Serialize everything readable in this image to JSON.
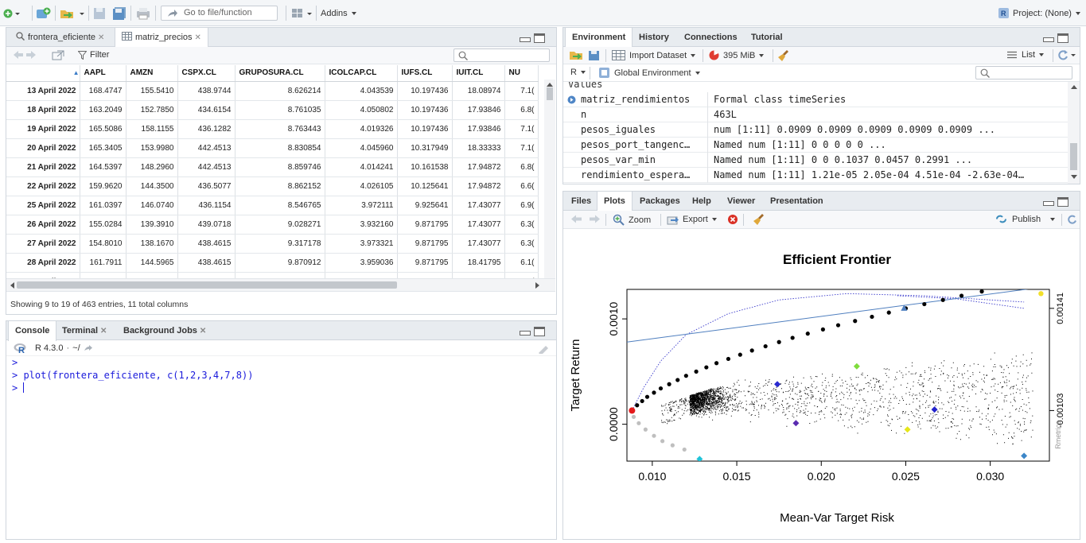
{
  "top_toolbar": {
    "goto_placeholder": "Go to file/function",
    "addins_label": "Addins",
    "project_label": "Project: (None)"
  },
  "source_pane": {
    "tabs": [
      {
        "label": "frontera_eficiente",
        "active": false
      },
      {
        "label": "matriz_precios",
        "active": true
      }
    ],
    "filter_label": "Filter",
    "columns": [
      "",
      "AAPL",
      "AMZN",
      "CSPX.CL",
      "GRUPOSURA.CL",
      "ICOLCAP.CL",
      "IUFS.CL",
      "IUIT.CL",
      "NU"
    ],
    "rows": [
      [
        "13 April 2022",
        "168.4747",
        "155.5410",
        "438.9744",
        "8.626214",
        "4.043539",
        "10.197436",
        "18.08974",
        "7.1("
      ],
      [
        "18 April 2022",
        "163.2049",
        "152.7850",
        "434.6154",
        "8.761035",
        "4.050802",
        "10.197436",
        "17.93846",
        "6.8("
      ],
      [
        "19 April 2022",
        "165.5086",
        "158.1155",
        "436.1282",
        "8.763443",
        "4.019326",
        "10.197436",
        "17.93846",
        "7.1("
      ],
      [
        "20 April 2022",
        "165.3405",
        "153.9980",
        "442.4513",
        "8.830854",
        "4.045960",
        "10.317949",
        "18.33333",
        "7.1("
      ],
      [
        "21 April 2022",
        "164.5397",
        "148.2960",
        "442.4513",
        "8.859746",
        "4.014241",
        "10.161538",
        "17.94872",
        "6.8("
      ],
      [
        "22 April 2022",
        "159.9620",
        "144.3500",
        "436.5077",
        "8.862152",
        "4.026105",
        "10.125641",
        "17.94872",
        "6.6("
      ],
      [
        "25 April 2022",
        "161.0397",
        "146.0740",
        "436.1154",
        "8.546765",
        "3.972111",
        "9.925641",
        "17.43077",
        "6.9("
      ],
      [
        "26 April 2022",
        "155.0284",
        "139.3910",
        "439.0718",
        "9.028271",
        "3.932160",
        "9.871795",
        "17.43077",
        "6.3("
      ],
      [
        "27 April 2022",
        "154.8010",
        "138.1670",
        "438.4615",
        "9.317178",
        "3.973321",
        "9.871795",
        "17.43077",
        "6.3("
      ],
      [
        "28 April 2022",
        "161.7911",
        "144.5965",
        "438.4615",
        "9.870912",
        "3.959036",
        "9.871795",
        "18.41795",
        "6.1("
      ],
      [
        "29 April 2022",
        "155.8688",
        "124.2815",
        "436.9231",
        "9.870912",
        "3.861943",
        "9.871795",
        "18.71795",
        "6.0("
      ]
    ],
    "status": "Showing 9 to 19 of 463 entries, 11 total columns"
  },
  "console_pane": {
    "tabs": [
      {
        "label": "Console",
        "active": true
      },
      {
        "label": "Terminal",
        "active": false
      },
      {
        "label": "Background Jobs",
        "active": false
      }
    ],
    "r_version": "R 4.3.0",
    "path": "~/",
    "lines": [
      ">",
      "> plot(frontera_eficiente, c(1,2,3,4,7,8))",
      ">"
    ]
  },
  "env_pane": {
    "tabs": [
      "Environment",
      "History",
      "Connections",
      "Tutorial"
    ],
    "active_tab": "Environment",
    "import_label": "Import Dataset",
    "memory_label": "395 MiB",
    "list_label": "List",
    "lang_label": "R",
    "scope_label": "Global Environment",
    "section_label": "Values",
    "values": [
      {
        "name": "matriz_rendimientos",
        "value": "Formal class  timeSeries",
        "expandable": true
      },
      {
        "name": "n",
        "value": "463L",
        "expandable": false
      },
      {
        "name": "pesos_iguales",
        "value": "num [1:11] 0.0909 0.0909 0.0909 0.0909 0.0909 ...",
        "expandable": false
      },
      {
        "name": "pesos_port_tangenc…",
        "value": "Named num [1:11] 0 0 0 0 0 ...",
        "expandable": false
      },
      {
        "name": "pesos_var_min",
        "value": "Named num [1:11] 0 0 0.1037 0.0457 0.2991 ...",
        "expandable": false
      },
      {
        "name": "rendimiento_espera…",
        "value": "Named num [1:11] 1.21e-05 2.05e-04 4.51e-04 -2.63e-04…",
        "expandable": false
      }
    ]
  },
  "files_pane": {
    "tabs": [
      "Files",
      "Plots",
      "Packages",
      "Help",
      "Viewer",
      "Presentation"
    ],
    "active_tab": "Plots",
    "zoom_label": "Zoom",
    "export_label": "Export",
    "publish_label": "Publish"
  },
  "chart_data": {
    "type": "scatter",
    "title": "Efficient Frontier",
    "xlabel": "Mean-Var Target Risk",
    "ylabel": "Target Return",
    "xlim": [
      0.0085,
      0.0335
    ],
    "ylim": [
      -0.00035,
      0.00128
    ],
    "x_ticks": [
      "0.010",
      "0.015",
      "0.020",
      "0.025",
      "0.030"
    ],
    "y_ticks": [
      "0.0000",
      "0.0010"
    ],
    "right_axis_ticks": [
      "-0.00103",
      "0.00141"
    ],
    "right_axis_label": "Rmetrics",
    "efficient_frontier": [
      [
        0.0088,
        0.00013
      ],
      [
        0.0091,
        0.00018
      ],
      [
        0.0094,
        0.00022
      ],
      [
        0.0097,
        0.00026
      ],
      [
        0.0101,
        0.0003
      ],
      [
        0.0105,
        0.00034
      ],
      [
        0.011,
        0.00038
      ],
      [
        0.0115,
        0.00042
      ],
      [
        0.012,
        0.00046
      ],
      [
        0.0126,
        0.0005
      ],
      [
        0.0132,
        0.00054
      ],
      [
        0.0138,
        0.00058
      ],
      [
        0.0145,
        0.00062
      ],
      [
        0.0152,
        0.00066
      ],
      [
        0.0159,
        0.0007
      ],
      [
        0.0167,
        0.00074
      ],
      [
        0.0175,
        0.00078
      ],
      [
        0.0183,
        0.00082
      ],
      [
        0.0192,
        0.00086
      ],
      [
        0.0201,
        0.0009
      ],
      [
        0.021,
        0.00094
      ],
      [
        0.022,
        0.00098
      ],
      [
        0.023,
        0.00102
      ],
      [
        0.024,
        0.00106
      ],
      [
        0.025,
        0.0011
      ],
      [
        0.0261,
        0.00114
      ],
      [
        0.0272,
        0.00118
      ],
      [
        0.0283,
        0.00122
      ],
      [
        0.0295,
        0.00126
      ]
    ],
    "inefficient_frontier": [
      [
        0.0089,
        7e-05
      ],
      [
        0.0092,
        1e-05
      ],
      [
        0.0096,
        -5e-05
      ],
      [
        0.0101,
        -0.00011
      ],
      [
        0.0106,
        -0.00016
      ],
      [
        0.0112,
        -0.0002
      ],
      [
        0.0119,
        -0.00024
      ]
    ],
    "capital_market_line": [
      [
        0.0085,
        0.00078
      ],
      [
        0.0335,
        0.00131
      ]
    ],
    "special_points": [
      {
        "name": "min-variance",
        "x": 0.0088,
        "y": 0.00013,
        "color": "#e41a1c",
        "shape": "circle"
      },
      {
        "name": "tangency",
        "x": 0.0249,
        "y": 0.0011,
        "color": "#4f7fbf",
        "shape": "triangle"
      },
      {
        "name": "equal-weights",
        "x": 0.0221,
        "y": 0.00055,
        "color": "#7fdc3c",
        "shape": "diamond"
      },
      {
        "name": "asset-1",
        "x": 0.0128,
        "y": -0.00033,
        "color": "#1fc3d8",
        "shape": "diamond"
      },
      {
        "name": "asset-2",
        "x": 0.0267,
        "y": 0.00014,
        "color": "#2222cc",
        "shape": "diamond"
      },
      {
        "name": "asset-3",
        "x": 0.0174,
        "y": 0.00038,
        "color": "#2a2ad0",
        "shape": "diamond"
      },
      {
        "name": "asset-4",
        "x": 0.0185,
        "y": 1e-05,
        "color": "#5a2bb0",
        "shape": "diamond"
      },
      {
        "name": "asset-5",
        "x": 0.0251,
        "y": -5e-05,
        "color": "#e6e61a",
        "shape": "diamond"
      },
      {
        "name": "asset-6",
        "x": 0.032,
        "y": -0.0003,
        "color": "#3c86c8",
        "shape": "diamond"
      },
      {
        "name": "asset-7",
        "x": 0.033,
        "y": 0.00124,
        "color": "#f2e02a",
        "shape": "circle"
      }
    ],
    "colors": {
      "frontier": "#000000",
      "inefficient": "#bfbfbf",
      "cml": "#4f7fbf",
      "twoasset": "#3a3acc",
      "monte_carlo": "#000000"
    }
  }
}
